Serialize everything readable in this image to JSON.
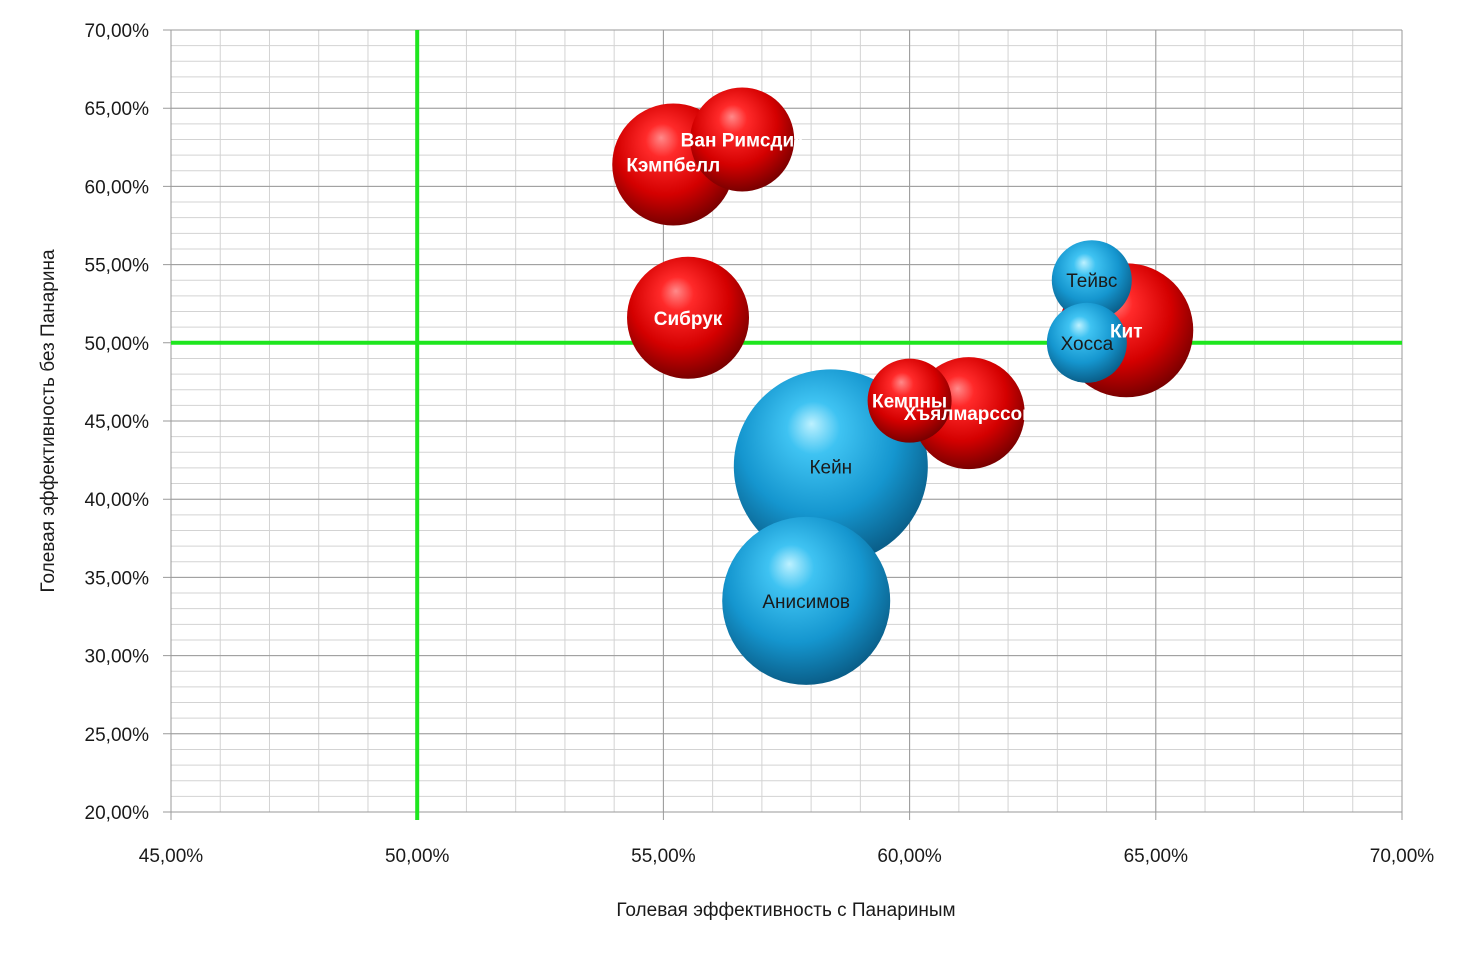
{
  "chart_data": {
    "type": "scatter",
    "title": "",
    "xlabel": "Голевая эффективность с Панариным",
    "ylabel": "Голевая эффективность  без Панарина",
    "xlim": [
      45,
      70
    ],
    "ylim": [
      20,
      70
    ],
    "x_major_step": 5,
    "y_major_step": 5,
    "x_minor_step": 1,
    "y_minor_step": 1,
    "grid": true,
    "x_ticks": [
      "45,00%",
      "50,00%",
      "55,00%",
      "60,00%",
      "65,00%",
      "70,00%"
    ],
    "y_ticks": [
      "20,00%",
      "25,00%",
      "30,00%",
      "35,00%",
      "40,00%",
      "45,00%",
      "50,00%",
      "55,00%",
      "60,00%",
      "65,00%",
      "70,00%"
    ],
    "reference_lines": {
      "x": 50,
      "y": 50,
      "color": "#1ee61e"
    },
    "colors": {
      "red": "#e01010",
      "blue": "#1aa6dd"
    },
    "points": [
      {
        "name": "Кэмпбелл",
        "x": 55.2,
        "y": 61.4,
        "size": 61,
        "color": "red",
        "label_color": "#ffffff"
      },
      {
        "name": "Ван Римсдик",
        "x": 56.6,
        "y": 63.0,
        "size": 52,
        "color": "red",
        "label_color": "#ffffff"
      },
      {
        "name": "Сибрук",
        "x": 55.5,
        "y": 51.6,
        "size": 61,
        "color": "red",
        "label_color": "#ffffff"
      },
      {
        "name": "Кит",
        "x": 64.4,
        "y": 50.8,
        "size": 67,
        "color": "red",
        "label_color": "#ffffff"
      },
      {
        "name": "Хъялмарссон",
        "x": 61.2,
        "y": 45.5,
        "size": 56,
        "color": "red",
        "label_color": "#ffffff"
      },
      {
        "name": "Кемпны",
        "x": 60.0,
        "y": 46.3,
        "size": 42,
        "color": "red",
        "label_color": "#ffffff"
      },
      {
        "name": "Тейвс",
        "x": 63.7,
        "y": 54.0,
        "size": 40,
        "color": "blue",
        "label_color": "#1a1a1a"
      },
      {
        "name": "Хосса",
        "x": 63.6,
        "y": 50.0,
        "size": 40,
        "color": "blue",
        "label_color": "#1a1a1a"
      },
      {
        "name": "Кейн",
        "x": 58.4,
        "y": 42.1,
        "size": 97,
        "color": "blue",
        "label_color": "#1a1a1a"
      },
      {
        "name": "Анисимов",
        "x": 57.9,
        "y": 33.5,
        "size": 84,
        "color": "blue",
        "label_color": "#1a1a1a"
      }
    ]
  }
}
